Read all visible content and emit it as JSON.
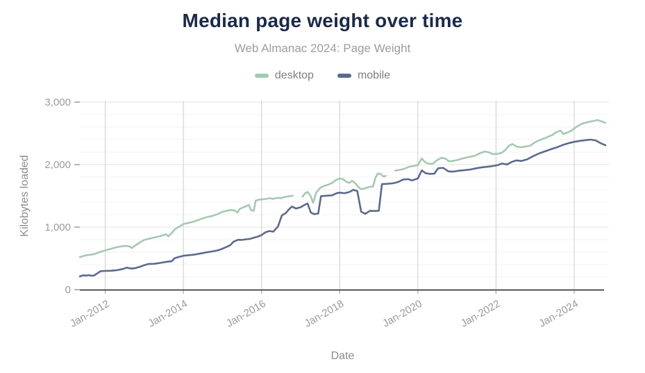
{
  "colors": {
    "title": "#1b2a49",
    "subtitle": "#9c9c9c",
    "legend_text": "#7f7f7f",
    "tick_text": "#9a9a9a",
    "axis_title_text": "#8c8c8c",
    "axis_line": "#4f4f4f",
    "grid_minor": "#f2f2f2",
    "grid_major": "#e3e3e3",
    "grid_year": "#cccccc",
    "desktop_line": "#a5c8b2",
    "mobile_line": "#5b6a8c"
  },
  "chart_data": {
    "type": "line",
    "title": "Median page weight over time",
    "subtitle": "Web Almanac 2024: Page Weight",
    "xlabel": "Date",
    "ylabel": "Kilobytes loaded",
    "legend_position": "top",
    "grid": true,
    "xlim": [
      2011.35,
      2024.8
    ],
    "ylim": [
      0,
      3000
    ],
    "y_minor_step": 200,
    "y_ticks": {
      "values": [
        0,
        1000,
        2000,
        3000
      ],
      "labels": [
        "0",
        "1,000",
        "2,000",
        "3,000"
      ]
    },
    "x_ticks": {
      "values": [
        2012,
        2014,
        2016,
        2018,
        2020,
        2022,
        2024
      ],
      "labels": [
        "Jan-2012",
        "Jan-2014",
        "Jan-2016",
        "Jan-2018",
        "Jan-2020",
        "Jan-2022",
        "Jan-2024"
      ]
    },
    "series": [
      {
        "name": "desktop",
        "color": "#a5c8b2",
        "points": [
          [
            2011.35,
            520
          ],
          [
            2011.45,
            540
          ],
          [
            2011.55,
            555
          ],
          [
            2011.65,
            560
          ],
          [
            2011.75,
            575
          ],
          [
            2011.85,
            600
          ],
          [
            2012.0,
            628
          ],
          [
            2012.15,
            655
          ],
          [
            2012.3,
            680
          ],
          [
            2012.45,
            695
          ],
          [
            2012.55,
            700
          ],
          [
            2012.62,
            690
          ],
          [
            2012.68,
            665
          ],
          [
            2012.75,
            700
          ],
          [
            2012.9,
            760
          ],
          [
            2013.0,
            795
          ],
          [
            2013.15,
            820
          ],
          [
            2013.3,
            840
          ],
          [
            2013.45,
            865
          ],
          [
            2013.55,
            885
          ],
          [
            2013.62,
            855
          ],
          [
            2013.7,
            905
          ],
          [
            2013.78,
            965
          ],
          [
            2013.9,
            1010
          ],
          [
            2014.0,
            1050
          ],
          [
            2014.15,
            1070
          ],
          [
            2014.3,
            1095
          ],
          [
            2014.45,
            1130
          ],
          [
            2014.6,
            1160
          ],
          [
            2014.75,
            1180
          ],
          [
            2014.9,
            1215
          ],
          [
            2015.0,
            1245
          ],
          [
            2015.1,
            1260
          ],
          [
            2015.2,
            1275
          ],
          [
            2015.3,
            1270
          ],
          [
            2015.38,
            1235
          ],
          [
            2015.45,
            1295
          ],
          [
            2015.55,
            1320
          ],
          [
            2015.62,
            1340
          ],
          [
            2015.68,
            1355
          ],
          [
            2015.73,
            1270
          ],
          [
            2015.8,
            1262
          ],
          [
            2015.85,
            1425
          ],
          [
            2015.95,
            1440
          ],
          [
            2016.1,
            1450
          ],
          [
            2016.2,
            1462
          ],
          [
            2016.3,
            1452
          ],
          [
            2016.4,
            1470
          ],
          [
            2016.5,
            1462
          ],
          [
            2016.6,
            1485
          ],
          [
            2016.7,
            1492
          ],
          [
            2016.8,
            1502
          ],
          [
            2016.93,
            null
          ],
          [
            2017.05,
            1488
          ],
          [
            2017.12,
            1545
          ],
          [
            2017.18,
            1562
          ],
          [
            2017.25,
            1505
          ],
          [
            2017.32,
            1390
          ],
          [
            2017.4,
            1555
          ],
          [
            2017.5,
            1628
          ],
          [
            2017.6,
            1660
          ],
          [
            2017.7,
            1678
          ],
          [
            2017.8,
            1705
          ],
          [
            2017.9,
            1752
          ],
          [
            2018.0,
            1778
          ],
          [
            2018.08,
            1768
          ],
          [
            2018.18,
            1722
          ],
          [
            2018.25,
            1708
          ],
          [
            2018.32,
            1742
          ],
          [
            2018.4,
            1700
          ],
          [
            2018.48,
            1640
          ],
          [
            2018.55,
            1605
          ],
          [
            2018.65,
            1622
          ],
          [
            2018.75,
            1642
          ],
          [
            2018.85,
            1648
          ],
          [
            2018.92,
            1800
          ],
          [
            2018.98,
            1858
          ],
          [
            2019.05,
            1850
          ],
          [
            2019.12,
            1808
          ],
          [
            2019.18,
            1820
          ],
          [
            2019.3,
            null
          ],
          [
            2019.42,
            1905
          ],
          [
            2019.55,
            1918
          ],
          [
            2019.65,
            1932
          ],
          [
            2019.78,
            1968
          ],
          [
            2019.9,
            1978
          ],
          [
            2020.0,
            1992
          ],
          [
            2020.1,
            2098
          ],
          [
            2020.18,
            2040
          ],
          [
            2020.28,
            2015
          ],
          [
            2020.38,
            2012
          ],
          [
            2020.5,
            2075
          ],
          [
            2020.6,
            2108
          ],
          [
            2020.7,
            2098
          ],
          [
            2020.8,
            2052
          ],
          [
            2020.9,
            2060
          ],
          [
            2021.0,
            2072
          ],
          [
            2021.15,
            2100
          ],
          [
            2021.3,
            2120
          ],
          [
            2021.45,
            2140
          ],
          [
            2021.6,
            2185
          ],
          [
            2021.72,
            2210
          ],
          [
            2021.82,
            2195
          ],
          [
            2021.92,
            2168
          ],
          [
            2022.05,
            2172
          ],
          [
            2022.15,
            2192
          ],
          [
            2022.25,
            2240
          ],
          [
            2022.32,
            2298
          ],
          [
            2022.42,
            2330
          ],
          [
            2022.52,
            2290
          ],
          [
            2022.62,
            2278
          ],
          [
            2022.75,
            2288
          ],
          [
            2022.88,
            2305
          ],
          [
            2023.0,
            2358
          ],
          [
            2023.15,
            2400
          ],
          [
            2023.3,
            2435
          ],
          [
            2023.45,
            2478
          ],
          [
            2023.55,
            2520
          ],
          [
            2023.65,
            2545
          ],
          [
            2023.72,
            2490
          ],
          [
            2023.82,
            2512
          ],
          [
            2023.92,
            2540
          ],
          [
            2024.0,
            2578
          ],
          [
            2024.1,
            2620
          ],
          [
            2024.2,
            2655
          ],
          [
            2024.35,
            2680
          ],
          [
            2024.5,
            2700
          ],
          [
            2024.6,
            2712
          ],
          [
            2024.7,
            2692
          ],
          [
            2024.8,
            2668
          ]
        ]
      },
      {
        "name": "mobile",
        "color": "#5b6a8c",
        "points": [
          [
            2011.35,
            212
          ],
          [
            2011.45,
            230
          ],
          [
            2011.5,
            225
          ],
          [
            2011.58,
            232
          ],
          [
            2011.65,
            222
          ],
          [
            2011.72,
            228
          ],
          [
            2011.8,
            262
          ],
          [
            2011.88,
            296
          ],
          [
            2012.0,
            300
          ],
          [
            2012.15,
            302
          ],
          [
            2012.3,
            312
          ],
          [
            2012.45,
            330
          ],
          [
            2012.55,
            352
          ],
          [
            2012.65,
            338
          ],
          [
            2012.75,
            342
          ],
          [
            2012.9,
            368
          ],
          [
            2013.0,
            392
          ],
          [
            2013.1,
            410
          ],
          [
            2013.25,
            413
          ],
          [
            2013.4,
            428
          ],
          [
            2013.5,
            438
          ],
          [
            2013.6,
            448
          ],
          [
            2013.7,
            455
          ],
          [
            2013.78,
            505
          ],
          [
            2013.88,
            522
          ],
          [
            2014.0,
            542
          ],
          [
            2014.15,
            552
          ],
          [
            2014.3,
            562
          ],
          [
            2014.45,
            580
          ],
          [
            2014.6,
            598
          ],
          [
            2014.75,
            612
          ],
          [
            2014.9,
            632
          ],
          [
            2015.0,
            655
          ],
          [
            2015.1,
            682
          ],
          [
            2015.2,
            712
          ],
          [
            2015.28,
            765
          ],
          [
            2015.4,
            798
          ],
          [
            2015.5,
            795
          ],
          [
            2015.6,
            806
          ],
          [
            2015.7,
            812
          ],
          [
            2015.8,
            830
          ],
          [
            2015.9,
            848
          ],
          [
            2016.0,
            872
          ],
          [
            2016.1,
            918
          ],
          [
            2016.2,
            938
          ],
          [
            2016.3,
            928
          ],
          [
            2016.42,
            1010
          ],
          [
            2016.52,
            1188
          ],
          [
            2016.62,
            1225
          ],
          [
            2016.7,
            1285
          ],
          [
            2016.78,
            1330
          ],
          [
            2016.88,
            1298
          ],
          [
            2017.0,
            1318
          ],
          [
            2017.1,
            1355
          ],
          [
            2017.18,
            1378
          ],
          [
            2017.26,
            1235
          ],
          [
            2017.35,
            1208
          ],
          [
            2017.45,
            1218
          ],
          [
            2017.52,
            1495
          ],
          [
            2017.65,
            1502
          ],
          [
            2017.8,
            1508
          ],
          [
            2017.92,
            1542
          ],
          [
            2018.0,
            1552
          ],
          [
            2018.12,
            1542
          ],
          [
            2018.25,
            1562
          ],
          [
            2018.35,
            1598
          ],
          [
            2018.45,
            1578
          ],
          [
            2018.55,
            1248
          ],
          [
            2018.65,
            1212
          ],
          [
            2018.78,
            1262
          ],
          [
            2018.9,
            1258
          ],
          [
            2019.0,
            1262
          ],
          [
            2019.08,
            1688
          ],
          [
            2019.2,
            1692
          ],
          [
            2019.35,
            1700
          ],
          [
            2019.5,
            1722
          ],
          [
            2019.62,
            1762
          ],
          [
            2019.75,
            1768
          ],
          [
            2019.85,
            1748
          ],
          [
            2020.0,
            1778
          ],
          [
            2020.1,
            1908
          ],
          [
            2020.2,
            1862
          ],
          [
            2020.3,
            1852
          ],
          [
            2020.42,
            1855
          ],
          [
            2020.52,
            1942
          ],
          [
            2020.65,
            1948
          ],
          [
            2020.78,
            1892
          ],
          [
            2020.9,
            1888
          ],
          [
            2021.05,
            1902
          ],
          [
            2021.2,
            1912
          ],
          [
            2021.35,
            1922
          ],
          [
            2021.5,
            1942
          ],
          [
            2021.65,
            1958
          ],
          [
            2021.8,
            1968
          ],
          [
            2021.92,
            1978
          ],
          [
            2022.05,
            1992
          ],
          [
            2022.15,
            2018
          ],
          [
            2022.28,
            2002
          ],
          [
            2022.4,
            2042
          ],
          [
            2022.52,
            2068
          ],
          [
            2022.65,
            2058
          ],
          [
            2022.8,
            2085
          ],
          [
            2022.95,
            2135
          ],
          [
            2023.1,
            2178
          ],
          [
            2023.25,
            2212
          ],
          [
            2023.4,
            2245
          ],
          [
            2023.55,
            2275
          ],
          [
            2023.7,
            2312
          ],
          [
            2023.85,
            2342
          ],
          [
            2024.0,
            2365
          ],
          [
            2024.15,
            2380
          ],
          [
            2024.3,
            2392
          ],
          [
            2024.42,
            2400
          ],
          [
            2024.55,
            2388
          ],
          [
            2024.65,
            2352
          ],
          [
            2024.73,
            2328
          ],
          [
            2024.8,
            2310
          ]
        ]
      }
    ]
  }
}
